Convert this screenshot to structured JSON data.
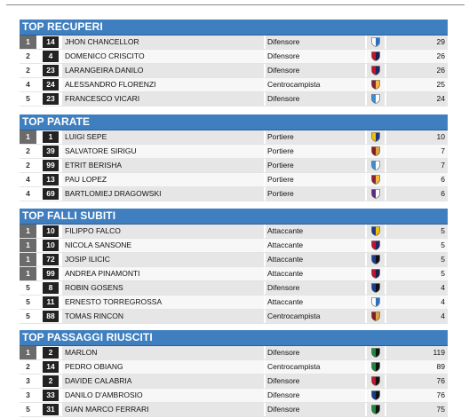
{
  "sections": [
    {
      "title": "TOP RECUPERI",
      "rows": [
        {
          "rank": "1",
          "tie": true,
          "jersey": "14",
          "name": "JHON CHANCELLOR",
          "role": "Difensore",
          "value": "29",
          "crest": "brescia-crest",
          "c1": "#ffffff",
          "c2": "#2a6fc0"
        },
        {
          "rank": "2",
          "tie": false,
          "jersey": "4",
          "name": "DOMENICO CRISCITO",
          "role": "Difensore",
          "value": "26",
          "crest": "genoa-crest",
          "c1": "#c3132e",
          "c2": "#13234f"
        },
        {
          "rank": "2",
          "tie": false,
          "jersey": "23",
          "name": "LARANGEIRA DANILO",
          "role": "Difensore",
          "value": "26",
          "crest": "bologna-crest",
          "c1": "#c3132e",
          "c2": "#1a2a66"
        },
        {
          "rank": "4",
          "tie": false,
          "jersey": "24",
          "name": "ALESSANDRO FLORENZI",
          "role": "Centrocampista",
          "value": "25",
          "crest": "roma-crest",
          "c1": "#8e1f2f",
          "c2": "#f0bc42"
        },
        {
          "rank": "5",
          "tie": false,
          "jersey": "23",
          "name": "FRANCESCO VICARI",
          "role": "Difensore",
          "value": "24",
          "crest": "spal-crest",
          "c1": "#3a8fd4",
          "c2": "#ffffff"
        }
      ]
    },
    {
      "title": "TOP PARATE",
      "rows": [
        {
          "rank": "1",
          "tie": true,
          "jersey": "1",
          "name": "LUIGI SEPE",
          "role": "Portiere",
          "value": "10",
          "crest": "parma-crest",
          "c1": "#f2c200",
          "c2": "#1b3a8a"
        },
        {
          "rank": "2",
          "tie": false,
          "jersey": "39",
          "name": "SALVATORE SIRIGU",
          "role": "Portiere",
          "value": "7",
          "crest": "torino-crest",
          "c1": "#8a1c1c",
          "c2": "#d9a441"
        },
        {
          "rank": "2",
          "tie": false,
          "jersey": "99",
          "name": "ETRIT BERISHA",
          "role": "Portiere",
          "value": "7",
          "crest": "spal-crest",
          "c1": "#3a8fd4",
          "c2": "#ffffff"
        },
        {
          "rank": "4",
          "tie": false,
          "jersey": "13",
          "name": "PAU LOPEZ",
          "role": "Portiere",
          "value": "6",
          "crest": "roma-crest",
          "c1": "#8e1f2f",
          "c2": "#f0bc42"
        },
        {
          "rank": "4",
          "tie": false,
          "jersey": "69",
          "name": "BARTLOMIEJ DRAGOWSKI",
          "role": "Portiere",
          "value": "6",
          "crest": "fiorentina-crest",
          "c1": "#5b2a86",
          "c2": "#ffffff"
        }
      ]
    },
    {
      "title": "TOP FALLI SUBITI",
      "rows": [
        {
          "rank": "1",
          "tie": true,
          "jersey": "10",
          "name": "FILIPPO FALCO",
          "role": "Attaccante",
          "value": "5",
          "crest": "lecce-crest",
          "c1": "#1b3a8a",
          "c2": "#f2c200"
        },
        {
          "rank": "1",
          "tie": true,
          "jersey": "10",
          "name": "NICOLA SANSONE",
          "role": "Attaccante",
          "value": "5",
          "crest": "bologna-crest",
          "c1": "#c3132e",
          "c2": "#1a2a66"
        },
        {
          "rank": "1",
          "tie": true,
          "jersey": "72",
          "name": "JOSIP ILICIC",
          "role": "Attaccante",
          "value": "5",
          "crest": "atalanta-crest",
          "c1": "#1a3f8f",
          "c2": "#111111"
        },
        {
          "rank": "1",
          "tie": true,
          "jersey": "99",
          "name": "ANDREA PINAMONTI",
          "role": "Attaccante",
          "value": "5",
          "crest": "genoa-crest",
          "c1": "#c3132e",
          "c2": "#13234f"
        },
        {
          "rank": "5",
          "tie": false,
          "jersey": "8",
          "name": "ROBIN GOSENS",
          "role": "Difensore",
          "value": "4",
          "crest": "atalanta-crest",
          "c1": "#1a3f8f",
          "c2": "#111111"
        },
        {
          "rank": "5",
          "tie": false,
          "jersey": "11",
          "name": "ERNESTO TORREGROSSA",
          "role": "Attaccante",
          "value": "4",
          "crest": "brescia-crest",
          "c1": "#ffffff",
          "c2": "#2a6fc0"
        },
        {
          "rank": "5",
          "tie": false,
          "jersey": "88",
          "name": "TOMAS RINCON",
          "role": "Centrocampista",
          "value": "4",
          "crest": "torino-crest",
          "c1": "#8a1c1c",
          "c2": "#d9a441"
        }
      ]
    },
    {
      "title": "TOP PASSAGGI RIUSCITI",
      "rows": [
        {
          "rank": "1",
          "tie": true,
          "jersey": "2",
          "name": "MARLON",
          "role": "Difensore",
          "value": "119",
          "crest": "sassuolo-crest",
          "c1": "#1f8a3a",
          "c2": "#111111"
        },
        {
          "rank": "2",
          "tie": false,
          "jersey": "14",
          "name": "PEDRO OBIANG",
          "role": "Centrocampista",
          "value": "89",
          "crest": "sassuolo-crest",
          "c1": "#1f8a3a",
          "c2": "#111111"
        },
        {
          "rank": "3",
          "tie": false,
          "jersey": "2",
          "name": "DAVIDE CALABRIA",
          "role": "Difensore",
          "value": "76",
          "crest": "milan-crest",
          "c1": "#c3132e",
          "c2": "#111111"
        },
        {
          "rank": "3",
          "tie": false,
          "jersey": "33",
          "name": "DANILO D'AMBROSIO",
          "role": "Difensore",
          "value": "76",
          "crest": "inter-crest",
          "c1": "#1b3a8a",
          "c2": "#111111"
        },
        {
          "rank": "5",
          "tie": false,
          "jersey": "31",
          "name": "GIAN MARCO FERRARI",
          "role": "Difensore",
          "value": "75",
          "crest": "sassuolo-crest",
          "c1": "#1f8a3a",
          "c2": "#111111"
        }
      ]
    }
  ]
}
